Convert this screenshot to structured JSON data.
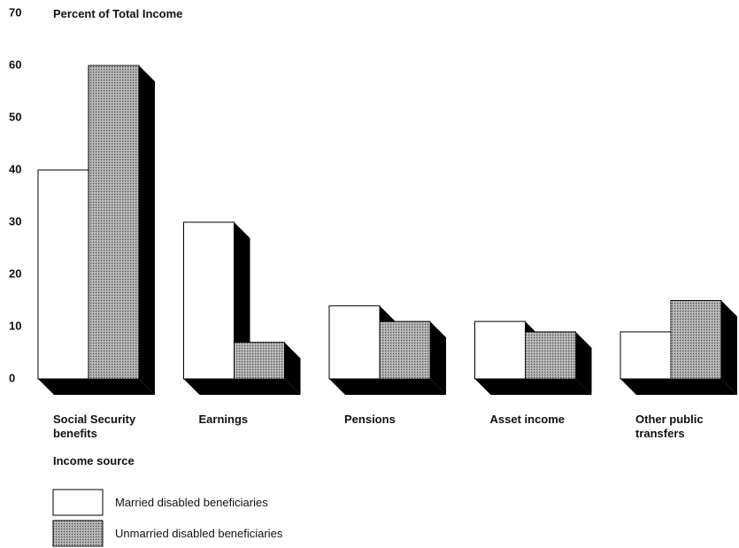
{
  "chart_data": {
    "type": "bar3d",
    "title": "Percent of Total Income",
    "x_label": "Income source",
    "categories": [
      "Social Security benefits",
      "Earnings",
      "Pensions",
      "Asset income",
      "Other public transfers"
    ],
    "series": [
      {
        "name": "Married disabled beneficiaries",
        "color": "#ffffff",
        "values": [
          40,
          30,
          14,
          11,
          9
        ]
      },
      {
        "name": "Unmarried disabled beneficiaries",
        "color": "#a8a8a8",
        "values": [
          60,
          7,
          11,
          9,
          15
        ]
      }
    ],
    "ylim": [
      0,
      70
    ],
    "yticks": [
      0,
      10,
      20,
      30,
      40,
      50,
      60,
      70
    ],
    "grid": false
  }
}
